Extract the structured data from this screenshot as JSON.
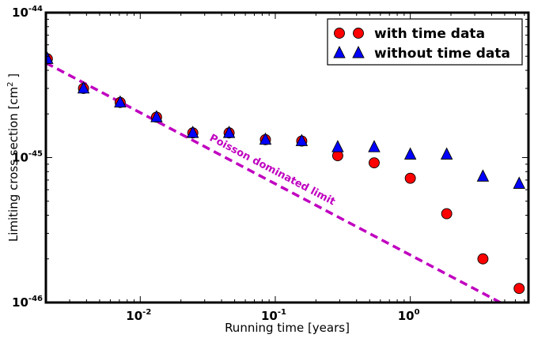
{
  "chart_data": {
    "type": "scatter",
    "title": "",
    "xlabel": "Running time [years]",
    "ylabel_prefix": "Limiting cross section [cm",
    "ylabel_exp": "2",
    "ylabel_suffix": " ]",
    "xscale": "log",
    "yscale": "log",
    "xlim": [
      0.002,
      7.5
    ],
    "ylim": [
      1e-46,
      1e-44
    ],
    "grid": false,
    "legend_position": "top-right",
    "x_ticks": [
      {
        "value": 0.01,
        "base": "10",
        "exp": "-2"
      },
      {
        "value": 0.1,
        "base": "10",
        "exp": "-1"
      },
      {
        "value": 1,
        "base": "10",
        "exp": "0"
      }
    ],
    "y_ticks": [
      {
        "value": 1e-44,
        "base": "10",
        "exp": "-44"
      },
      {
        "value": 1e-45,
        "base": "10",
        "exp": "-45"
      },
      {
        "value": 1e-46,
        "base": "10",
        "exp": "-46"
      }
    ],
    "series": [
      {
        "name": "with time data",
        "marker": "circle",
        "color": "#ff0000",
        "x": [
          0.00205,
          0.0038,
          0.0071,
          0.0132,
          0.0245,
          0.0455,
          0.0845,
          0.157,
          0.29,
          0.54,
          1.0,
          1.86,
          3.45,
          6.4
        ],
        "y": [
          4.8e-45,
          3e-45,
          2.4e-45,
          1.9e-45,
          1.48e-45,
          1.48e-45,
          1.33e-45,
          1.3e-45,
          1.03e-45,
          9.2e-46,
          7.2e-46,
          4.1e-46,
          2e-46,
          1.25e-46
        ]
      },
      {
        "name": "without time data",
        "marker": "triangle",
        "color": "#0000ff",
        "x": [
          0.00205,
          0.0038,
          0.0071,
          0.0132,
          0.0245,
          0.0455,
          0.0845,
          0.157,
          0.29,
          0.54,
          1.0,
          1.86,
          3.45,
          6.4
        ],
        "y": [
          4.8e-45,
          3e-45,
          2.4e-45,
          1.9e-45,
          1.48e-45,
          1.48e-45,
          1.33e-45,
          1.3e-45,
          1.18e-45,
          1.18e-45,
          1.05e-45,
          1.05e-45,
          7.4e-46,
          6.6e-46
        ]
      }
    ],
    "reference_line": {
      "label": "Poisson dominated limit",
      "color": "#c000c0",
      "style": "dashed",
      "x": [
        0.002,
        4.65
      ],
      "y": [
        4.5e-45,
        1e-46
      ]
    }
  }
}
